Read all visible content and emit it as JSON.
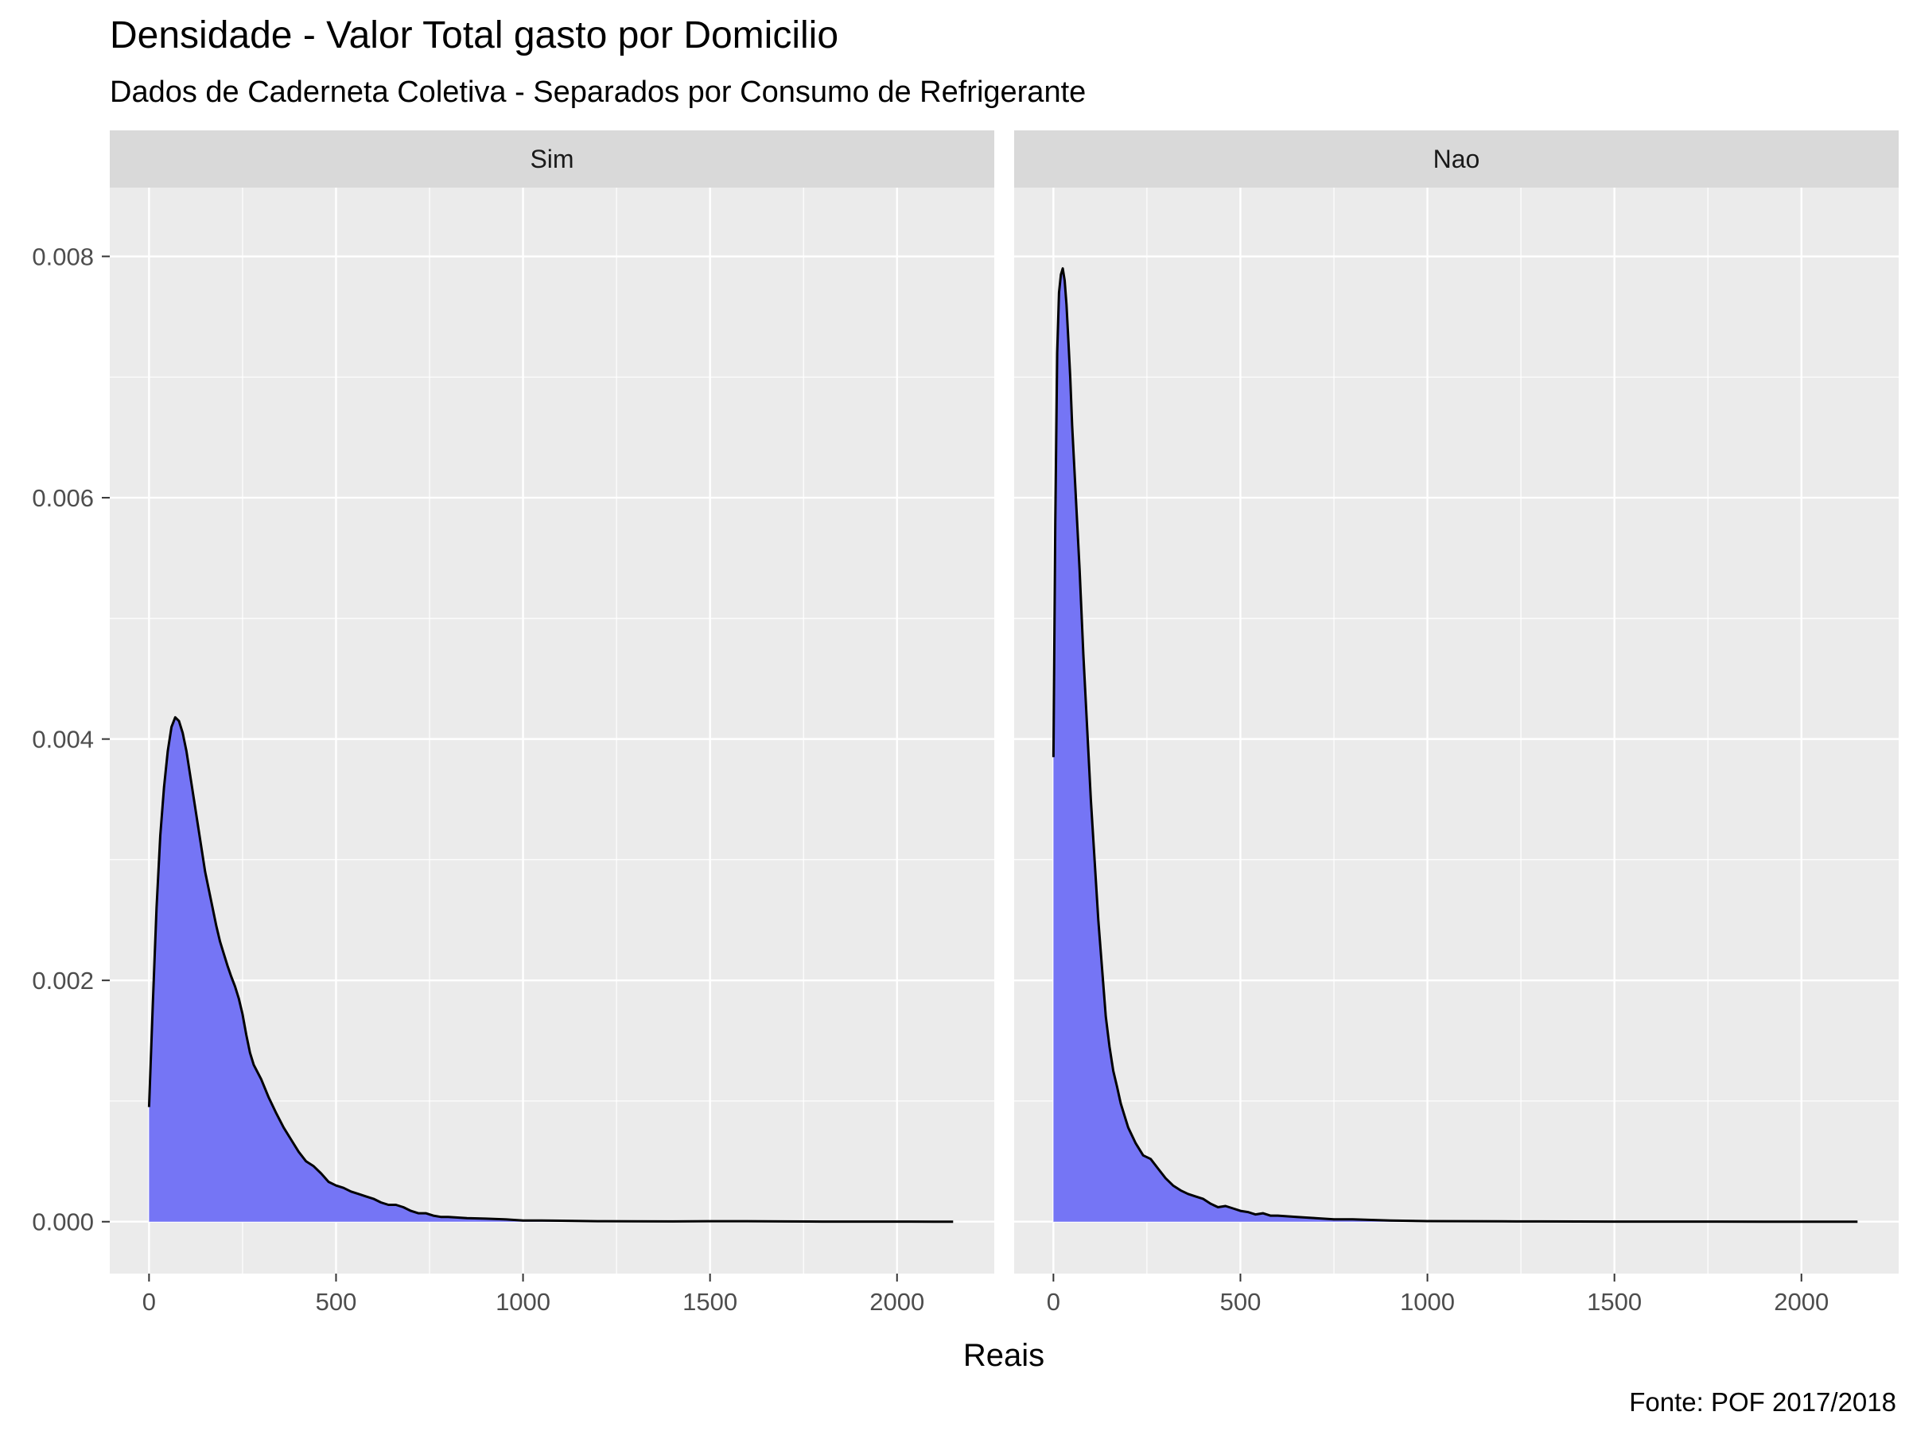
{
  "chart_data": {
    "type": "area",
    "title": "Densidade - Valor Total gasto por Domicilio",
    "subtitle": "Dados de Caderneta Coletiva - Separados por Consumo de Refrigerante",
    "xlabel": "Reais",
    "ylabel": "",
    "caption": "Fonte: POF 2017/2018",
    "xlim": [
      -105,
      2260
    ],
    "ylim": [
      -0.00043,
      0.00857
    ],
    "x_ticks": [
      0,
      500,
      1000,
      1500,
      2000
    ],
    "x_tick_labels": [
      "0",
      "500",
      "1000",
      "1500",
      "2000"
    ],
    "y_ticks": [
      0,
      0.002,
      0.004,
      0.006,
      0.008
    ],
    "y_tick_labels": [
      "0.000",
      "0.002",
      "0.004",
      "0.006",
      "0.008"
    ],
    "grid": true,
    "colors": {
      "panel_bg": "#ebebeb",
      "grid": "#ffffff",
      "strip_bg": "#d9d9d9",
      "fill": "#7575f5",
      "line": "#000000"
    },
    "panels": [
      {
        "label": "Sim",
        "series": {
          "x": [
            0,
            10,
            20,
            30,
            40,
            50,
            60,
            70,
            80,
            90,
            100,
            110,
            120,
            130,
            140,
            150,
            160,
            170,
            180,
            190,
            200,
            210,
            220,
            230,
            240,
            250,
            260,
            270,
            280,
            300,
            320,
            340,
            360,
            380,
            400,
            420,
            440,
            460,
            480,
            500,
            520,
            540,
            560,
            580,
            600,
            620,
            640,
            660,
            680,
            700,
            720,
            740,
            760,
            780,
            800,
            850,
            900,
            950,
            1000,
            1050,
            1100,
            1200,
            1300,
            1400,
            1500,
            1550,
            1600,
            1650,
            1700,
            1800,
            1900,
            2000,
            2100,
            2150
          ],
          "y": [
            0.00095,
            0.0018,
            0.0026,
            0.0032,
            0.0036,
            0.0039,
            0.0041,
            0.00418,
            0.00415,
            0.00405,
            0.0039,
            0.0037,
            0.0035,
            0.0033,
            0.0031,
            0.0029,
            0.00275,
            0.0026,
            0.00245,
            0.00232,
            0.00222,
            0.00212,
            0.00203,
            0.00195,
            0.00185,
            0.00172,
            0.00155,
            0.0014,
            0.0013,
            0.00118,
            0.00103,
            0.0009,
            0.00078,
            0.00068,
            0.00058,
            0.0005,
            0.00046,
            0.0004,
            0.00033,
            0.0003,
            0.00028,
            0.00025,
            0.00023,
            0.00021,
            0.00019,
            0.00016,
            0.00014,
            0.00014,
            0.00012,
            9e-05,
            7e-05,
            7e-05,
            5e-05,
            4e-05,
            4e-05,
            3e-05,
            2.5e-05,
            2e-05,
            1e-05,
            1e-05,
            8e-06,
            4e-06,
            3e-06,
            2e-06,
            4e-06,
            4e-06,
            4e-06,
            3e-06,
            2e-06,
            1e-06,
            1e-06,
            1e-06,
            5e-07,
            5e-07
          ]
        }
      },
      {
        "label": "Nao",
        "series": {
          "x": [
            0,
            5,
            10,
            15,
            20,
            25,
            30,
            35,
            40,
            45,
            50,
            60,
            70,
            80,
            90,
            100,
            110,
            120,
            130,
            140,
            150,
            160,
            170,
            180,
            190,
            200,
            220,
            240,
            260,
            280,
            300,
            320,
            340,
            360,
            380,
            400,
            420,
            440,
            460,
            480,
            500,
            520,
            540,
            560,
            580,
            600,
            650,
            700,
            750,
            800,
            850,
            900,
            1000,
            1100,
            1200,
            1300,
            1500,
            1700,
            1900,
            2000,
            2150
          ],
          "y": [
            0.00385,
            0.0058,
            0.0072,
            0.0077,
            0.00785,
            0.0079,
            0.0078,
            0.0076,
            0.0073,
            0.007,
            0.0066,
            0.006,
            0.0054,
            0.0047,
            0.0041,
            0.0035,
            0.003,
            0.0025,
            0.0021,
            0.0017,
            0.00145,
            0.00125,
            0.00112,
            0.00098,
            0.00088,
            0.00078,
            0.00065,
            0.00055,
            0.00052,
            0.00044,
            0.00036,
            0.0003,
            0.00026,
            0.00023,
            0.00021,
            0.00019,
            0.00015,
            0.00012,
            0.00013,
            0.00011,
            9e-05,
            8e-05,
            6e-05,
            7e-05,
            5e-05,
            5e-05,
            4e-05,
            3e-05,
            2e-05,
            2e-05,
            1.5e-05,
            1e-05,
            5e-06,
            4e-06,
            3e-06,
            2e-06,
            1e-06,
            1e-06,
            5e-07,
            5e-07,
            5e-07
          ]
        }
      }
    ]
  }
}
